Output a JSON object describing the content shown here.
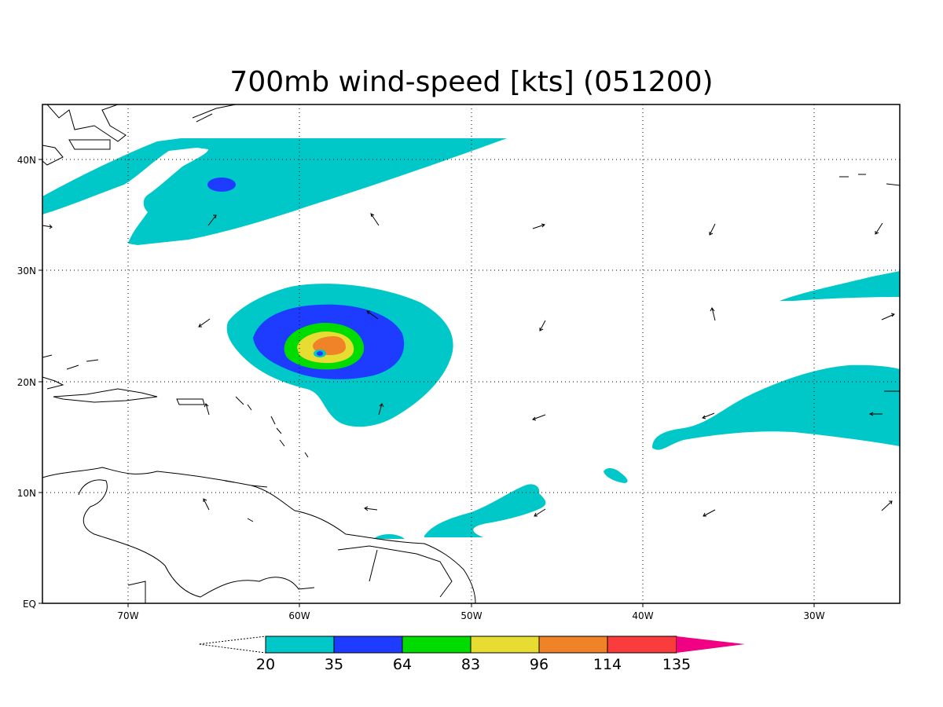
{
  "title": "700mb wind-speed [kts] (051200)",
  "axes": {
    "lon_ticks": [
      "70W",
      "60W",
      "50W",
      "40W",
      "30W"
    ],
    "lat_ticks": [
      "EQ",
      "10N",
      "20N",
      "30N",
      "40N"
    ]
  },
  "colorbar": {
    "levels": [
      "20",
      "35",
      "64",
      "83",
      "96",
      "114",
      "135"
    ],
    "colors": [
      "#00c8c8",
      "#1e3cff",
      "#00dc00",
      "#e6dc32",
      "#f08228",
      "#fa3c3c",
      "#f00082"
    ]
  },
  "shaded_features": [
    {
      "kind": "hurricane-wind-field",
      "center": "23N 59W",
      "max_level": "96-114"
    },
    {
      "kind": "northern-jet-band",
      "location": "36N-42N, 75W-47W"
    },
    {
      "kind": "isolated-maximum",
      "location": "38N 64W",
      "level": "35-64"
    }
  ]
}
